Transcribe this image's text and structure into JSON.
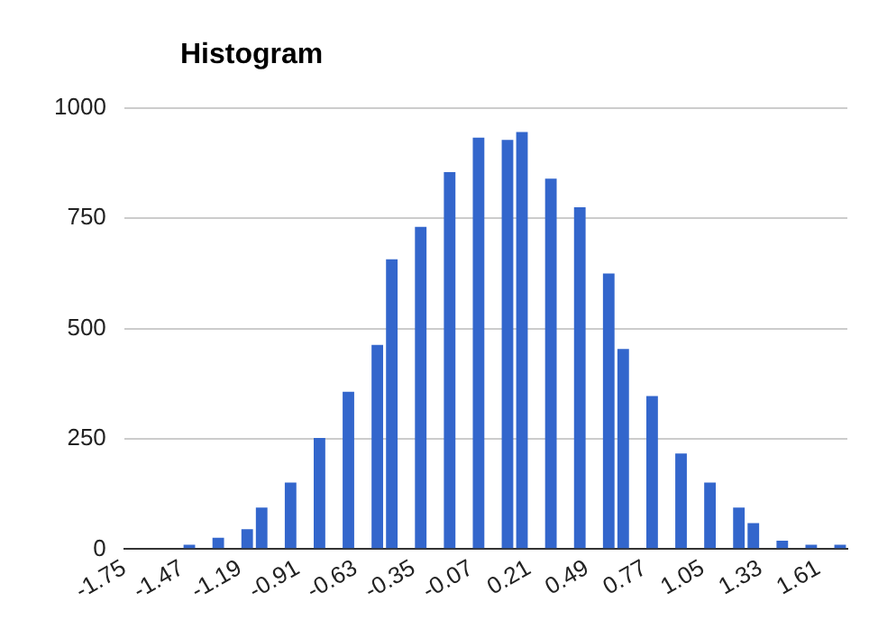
{
  "chart_data": {
    "type": "histogram",
    "title": "Histogram",
    "bins": [
      -1.75,
      -1.68,
      -1.61,
      -1.54,
      -1.47,
      -1.4,
      -1.33,
      -1.26,
      -1.19,
      -1.12,
      -1.05,
      -0.98,
      -0.91,
      -0.84,
      -0.77,
      -0.7,
      -0.63,
      -0.56,
      -0.49,
      -0.42,
      -0.35,
      -0.28,
      -0.21,
      -0.14,
      -0.07,
      0,
      0.07,
      0.14,
      0.21,
      0.28,
      0.35,
      0.42,
      0.49,
      0.56,
      0.63,
      0.7,
      0.77,
      0.84,
      0.91,
      0.98,
      1.05,
      1.12,
      1.19,
      1.26,
      1.33,
      1.4,
      1.47,
      1.54,
      1.61,
      1.68,
      1.75
    ],
    "values": [
      0,
      0,
      0,
      0,
      10,
      0,
      26,
      0,
      45,
      94,
      0,
      151,
      0,
      252,
      0,
      357,
      0,
      463,
      657,
      0,
      731,
      0,
      855,
      0,
      933,
      0,
      928,
      946,
      0,
      840,
      0,
      775,
      0,
      625,
      454,
      0,
      347,
      0,
      217,
      0,
      151,
      0,
      94,
      59,
      0,
      19,
      0,
      10,
      0,
      10
    ],
    "color": "#3366cc",
    "xlim": [
      -1.75,
      1.75
    ],
    "xticks": [
      -1.75,
      -1.47,
      -1.19,
      -0.91,
      -0.63,
      -0.35,
      -0.07,
      0.21,
      0.49,
      0.77,
      1.05,
      1.33,
      1.61
    ],
    "ylim": [
      0,
      1000
    ],
    "yticks": [
      0,
      250,
      500,
      750,
      1000
    ],
    "grid": "y",
    "legend": false
  }
}
